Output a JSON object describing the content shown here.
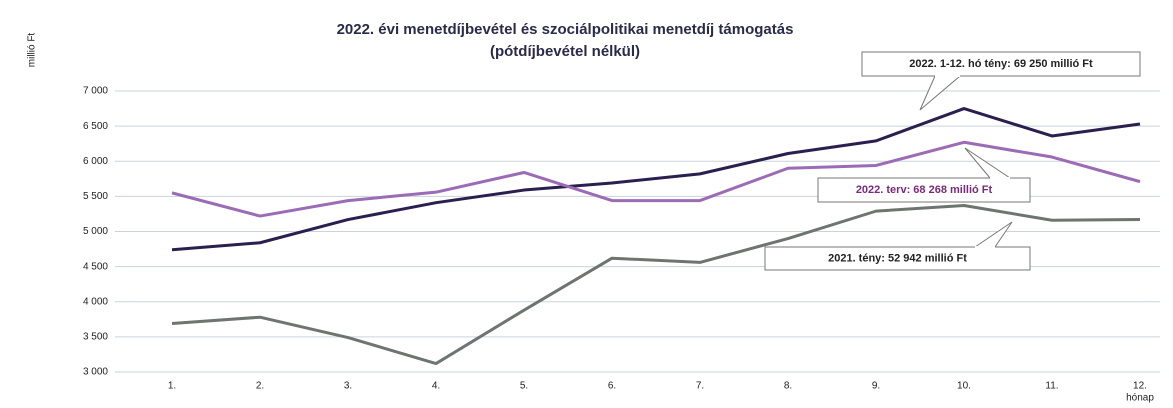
{
  "chart_data": {
    "type": "line",
    "title": [
      "2022. évi menetdíjbevétel és szociálpolitikai menetdíj támogatás",
      "(pótdíjbevétel nélkül)"
    ],
    "ylabel": "millió Ft",
    "xlabel": "hónap",
    "categories": [
      "1.",
      "2.",
      "3.",
      "4.",
      "5.",
      "6.",
      "7.",
      "8.",
      "9.",
      "10.",
      "11.",
      "12."
    ],
    "series": [
      {
        "name": "2022. 1-12. hó tény: 69 250 millió Ft",
        "color": "#2a1f4f",
        "values": [
          4740,
          4840,
          5170,
          5410,
          5590,
          5690,
          5820,
          6110,
          6290,
          6750,
          6360,
          6530
        ]
      },
      {
        "name": "2022. terv: 68 268 millió Ft",
        "color": "#9b6bb5",
        "values": [
          5550,
          5220,
          5440,
          5560,
          5840,
          5440,
          5440,
          5900,
          5940,
          6270,
          6060,
          5710
        ]
      },
      {
        "name": "2021. tény:  52 942 millió Ft",
        "color": "#6e7570",
        "values": [
          3690,
          3780,
          3490,
          3120,
          3880,
          4620,
          4560,
          4900,
          5290,
          5370,
          5160,
          5170
        ]
      }
    ],
    "ylim": [
      3000,
      7000
    ],
    "yticks": [
      {
        "value": 3000,
        "label": "3 000"
      },
      {
        "value": 3500,
        "label": "3 500"
      },
      {
        "value": 4000,
        "label": "4 000"
      },
      {
        "value": 4500,
        "label": "4 500"
      },
      {
        "value": 5000,
        "label": "5 000"
      },
      {
        "value": 5500,
        "label": "5 500"
      },
      {
        "value": 6000,
        "label": "6 000"
      },
      {
        "value": 6500,
        "label": "6 500"
      },
      {
        "value": 7000,
        "label": "7 000"
      }
    ],
    "grid": true
  }
}
